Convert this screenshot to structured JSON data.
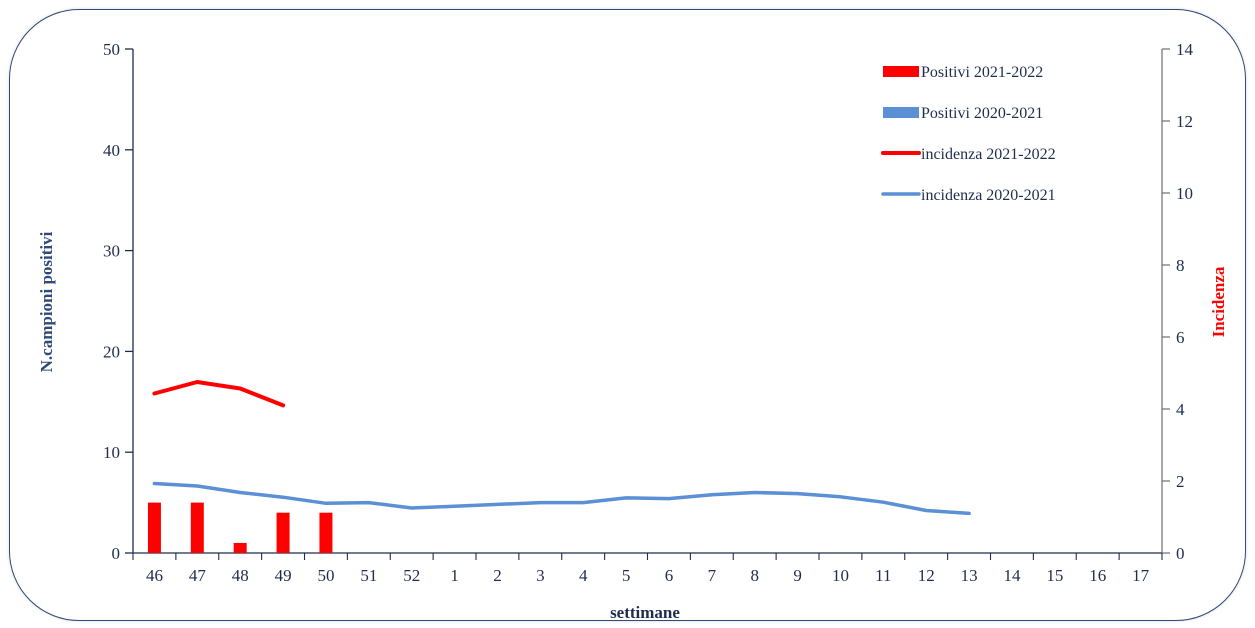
{
  "chart_data": {
    "type": "bar",
    "categories": [
      "46",
      "47",
      "48",
      "49",
      "50",
      "51",
      "52",
      "1",
      "2",
      "3",
      "4",
      "5",
      "6",
      "7",
      "8",
      "9",
      "10",
      "11",
      "12",
      "13",
      "14",
      "15",
      "16",
      "17"
    ],
    "xlabel": "settimane",
    "ylabel": "N.campioni positivi",
    "ylabel_right": "Incidenza",
    "ylim": [
      0,
      50
    ],
    "ylim_right": [
      0,
      14
    ],
    "yticks": [
      0,
      10,
      20,
      30,
      40,
      50
    ],
    "yticks_right": [
      0,
      2,
      4,
      6,
      8,
      10,
      12,
      14
    ],
    "legend_position": "top-right",
    "grid": false,
    "colors": {
      "red": "#ff0000",
      "blue": "#5b8fd6",
      "axis": "#1f2d4d",
      "right_title": "#ff0000",
      "left_title": "#2f4a78"
    },
    "series": [
      {
        "name": "Positivi 2021-2022",
        "type": "bar",
        "axis": "left",
        "color": "#ff0000",
        "values": [
          5,
          5,
          1,
          4,
          4,
          null,
          null,
          null,
          null,
          null,
          null,
          null,
          null,
          null,
          null,
          null,
          null,
          null,
          null,
          null,
          null,
          null,
          null,
          null
        ]
      },
      {
        "name": "Positivi 2020-2021",
        "type": "bar",
        "axis": "left",
        "color": "#5b8fd6",
        "values": [
          null,
          null,
          null,
          null,
          null,
          null,
          null,
          null,
          null,
          null,
          null,
          null,
          null,
          null,
          null,
          null,
          null,
          null,
          null,
          null,
          null,
          null,
          null,
          null
        ]
      },
      {
        "name": "incidenza 2021-2022",
        "type": "line",
        "axis": "right",
        "color": "#ff0000",
        "values": [
          4.43,
          4.75,
          4.57,
          4.1,
          null,
          null,
          null,
          null,
          null,
          null,
          null,
          null,
          null,
          null,
          null,
          null,
          null,
          null,
          null,
          null,
          null,
          null,
          null,
          null
        ]
      },
      {
        "name": "incidenza 2020-2021",
        "type": "line",
        "axis": "right",
        "color": "#5b8fd6",
        "values": [
          1.93,
          1.86,
          1.68,
          1.55,
          1.38,
          1.4,
          1.25,
          1.3,
          1.35,
          1.4,
          1.4,
          1.53,
          1.51,
          1.62,
          1.68,
          1.65,
          1.56,
          1.41,
          1.18,
          1.1,
          null,
          null,
          null,
          null
        ]
      }
    ]
  }
}
